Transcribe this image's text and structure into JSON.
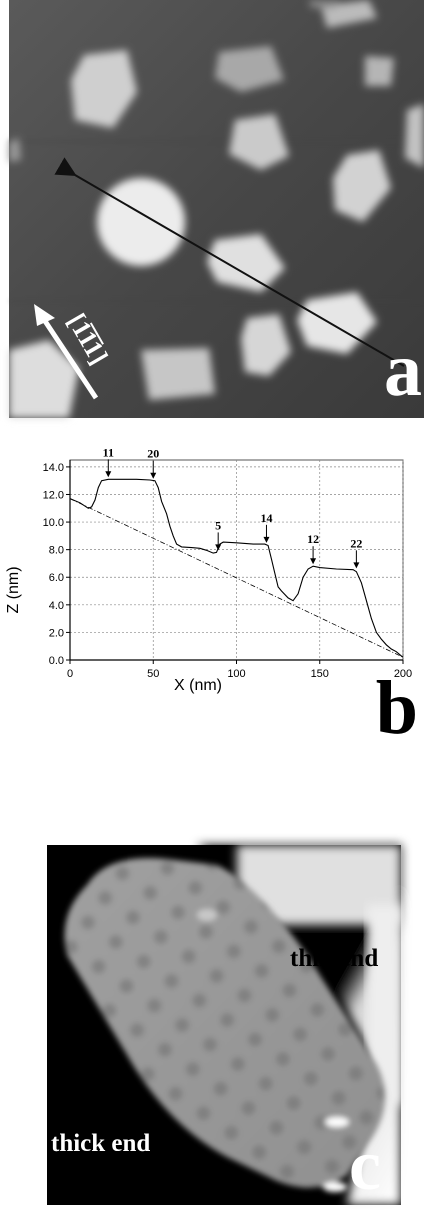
{
  "panel_a": {
    "letter": "a",
    "direction_label": "[1̅1̅1]"
  },
  "panel_b": {
    "letter": "b",
    "chart_data": {
      "type": "line",
      "title": "",
      "xlabel": "X (nm)",
      "ylabel": "Z (nm)",
      "xlim": [
        0,
        200
      ],
      "ylim": [
        0,
        14.5
      ],
      "x_ticks": [
        "0",
        "50",
        "100",
        "150",
        "200"
      ],
      "y_ticks": [
        "0.0",
        "2.0",
        "4.0",
        "6.0",
        "8.0",
        "10.0",
        "12.0",
        "14.0"
      ],
      "grid": true,
      "series": [
        {
          "values": [
            [
              0,
              11.7
            ],
            [
              6,
              11.4
            ],
            [
              11,
              11.0
            ],
            [
              13,
              11.1
            ],
            [
              15,
              11.6
            ],
            [
              17,
              12.5
            ],
            [
              19,
              13.0
            ],
            [
              23,
              13.1
            ],
            [
              30,
              13.1
            ],
            [
              40,
              13.1
            ],
            [
              48,
              13.05
            ],
            [
              51,
              13.0
            ],
            [
              53,
              12.5
            ],
            [
              55,
              11.5
            ],
            [
              58,
              10.6
            ],
            [
              60,
              9.7
            ],
            [
              62,
              9.0
            ],
            [
              64,
              8.4
            ],
            [
              67,
              8.2
            ],
            [
              73,
              8.15
            ],
            [
              78,
              8.1
            ],
            [
              82,
              7.95
            ],
            [
              86,
              7.75
            ],
            [
              88,
              7.8
            ],
            [
              90,
              8.4
            ],
            [
              92,
              8.55
            ],
            [
              100,
              8.5
            ],
            [
              110,
              8.4
            ],
            [
              117,
              8.4
            ],
            [
              119,
              8.3
            ],
            [
              121,
              7.3
            ],
            [
              123,
              6.3
            ],
            [
              125,
              5.3
            ],
            [
              127,
              5.0
            ],
            [
              131,
              4.5
            ],
            [
              134,
              4.3
            ],
            [
              137,
              4.8
            ],
            [
              140,
              6.0
            ],
            [
              143,
              6.6
            ],
            [
              146,
              6.8
            ],
            [
              150,
              6.7
            ],
            [
              160,
              6.6
            ],
            [
              170,
              6.55
            ],
            [
              172,
              6.4
            ],
            [
              175,
              5.6
            ],
            [
              178,
              4.3
            ],
            [
              181,
              3.0
            ],
            [
              184,
              2.0
            ],
            [
              187,
              1.5
            ],
            [
              190,
              1.1
            ],
            [
              193,
              0.8
            ],
            [
              196,
              0.6
            ],
            [
              199,
              0.3
            ],
            [
              200,
              0.2
            ]
          ]
        },
        {
          "values": [
            [
              0,
              11.7
            ],
            [
              200,
              0.2
            ]
          ]
        }
      ],
      "annotations": [
        {
          "text": "11",
          "x": 23,
          "y": 13.1
        },
        {
          "text": "20",
          "x": 50,
          "y": 13.0
        },
        {
          "text": "5",
          "x": 89,
          "y": 7.8
        },
        {
          "text": "14",
          "x": 118,
          "y": 8.35
        },
        {
          "text": "12",
          "x": 146,
          "y": 6.8
        },
        {
          "text": "22",
          "x": 172,
          "y": 6.5
        }
      ]
    }
  },
  "panel_c": {
    "letter": "c",
    "label_thin": "thin end",
    "label_thick": "thick end"
  }
}
